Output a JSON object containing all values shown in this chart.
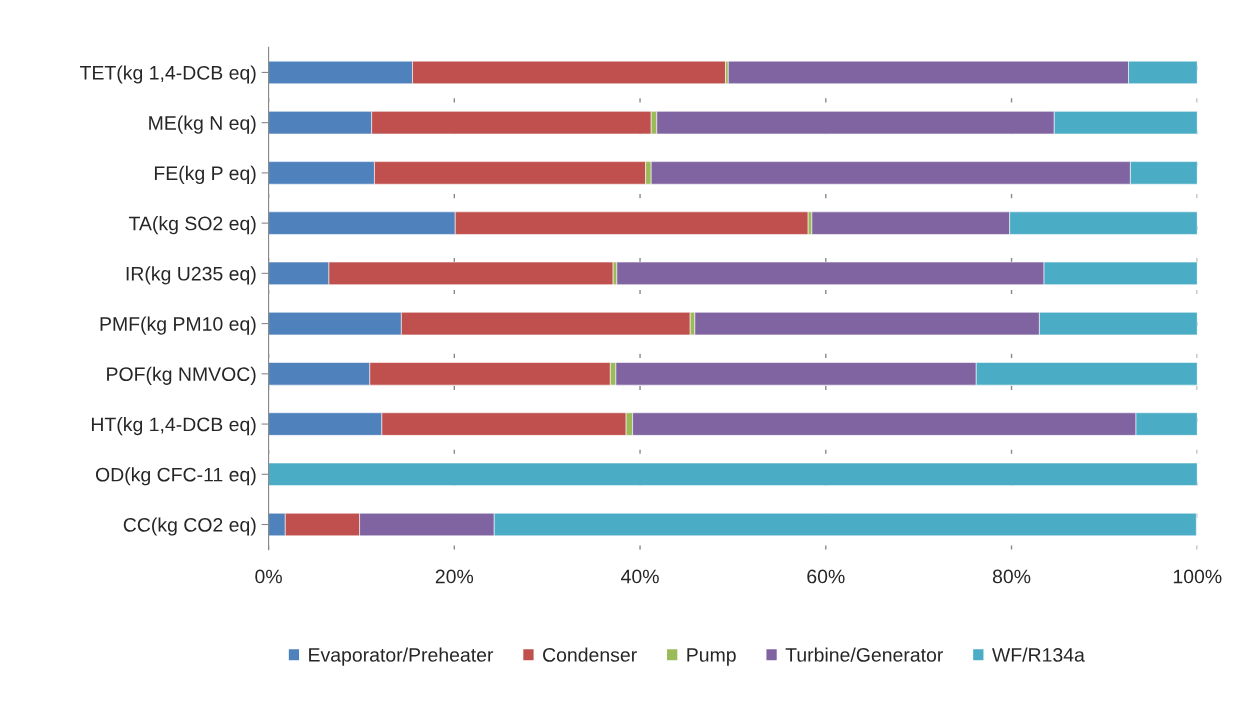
{
  "chart_data": {
    "type": "bar",
    "orientation": "horizontal",
    "stacked": true,
    "categories": [
      "TET(kg 1,4-DCB eq)",
      "ME(kg N eq)",
      "FE(kg P eq)",
      "TA(kg SO2 eq)",
      "IR(kg U235 eq)",
      "PMF(kg PM10 eq)",
      "POF(kg NMVOC)",
      "HT(kg 1,4-DCB eq)",
      "OD(kg CFC-11 eq)",
      "CC(kg CO2 eq)"
    ],
    "series": [
      {
        "name": "Evaporator/Preheater",
        "color": "#4f81bd",
        "values": [
          15.5,
          11.1,
          11.4,
          20.1,
          6.5,
          14.3,
          10.9,
          12.2,
          0,
          1.8
        ]
      },
      {
        "name": "Condenser",
        "color": "#c0504d",
        "values": [
          33.7,
          30.1,
          29.2,
          38.0,
          30.6,
          31.1,
          25.9,
          26.3,
          0,
          8.0
        ]
      },
      {
        "name": "Pump",
        "color": "#9bbb59",
        "values": [
          0.3,
          0.6,
          0.6,
          0.4,
          0.4,
          0.5,
          0.6,
          0.7,
          0,
          null
        ]
      },
      {
        "name": "Turbine/Generator",
        "color": "#8064a2",
        "values": [
          43.1,
          42.8,
          51.6,
          21.3,
          46.0,
          37.1,
          38.8,
          54.2,
          0,
          14.5
        ]
      },
      {
        "name": "WF/R134a",
        "color": "#4bacc6",
        "values": [
          7.4,
          15.4,
          7.2,
          20.2,
          16.5,
          17.0,
          23.8,
          6.6,
          100,
          75.6
        ]
      }
    ],
    "xlim": [
      0,
      100
    ],
    "xticks": [
      {
        "value": 0,
        "label": "0%"
      },
      {
        "value": 20,
        "label": "20%"
      },
      {
        "value": 40,
        "label": "40%"
      },
      {
        "value": 60,
        "label": "60%"
      },
      {
        "value": 80,
        "label": "80%"
      },
      {
        "value": 100,
        "label": "100%"
      }
    ],
    "grid": "x",
    "legend": "bottom"
  }
}
